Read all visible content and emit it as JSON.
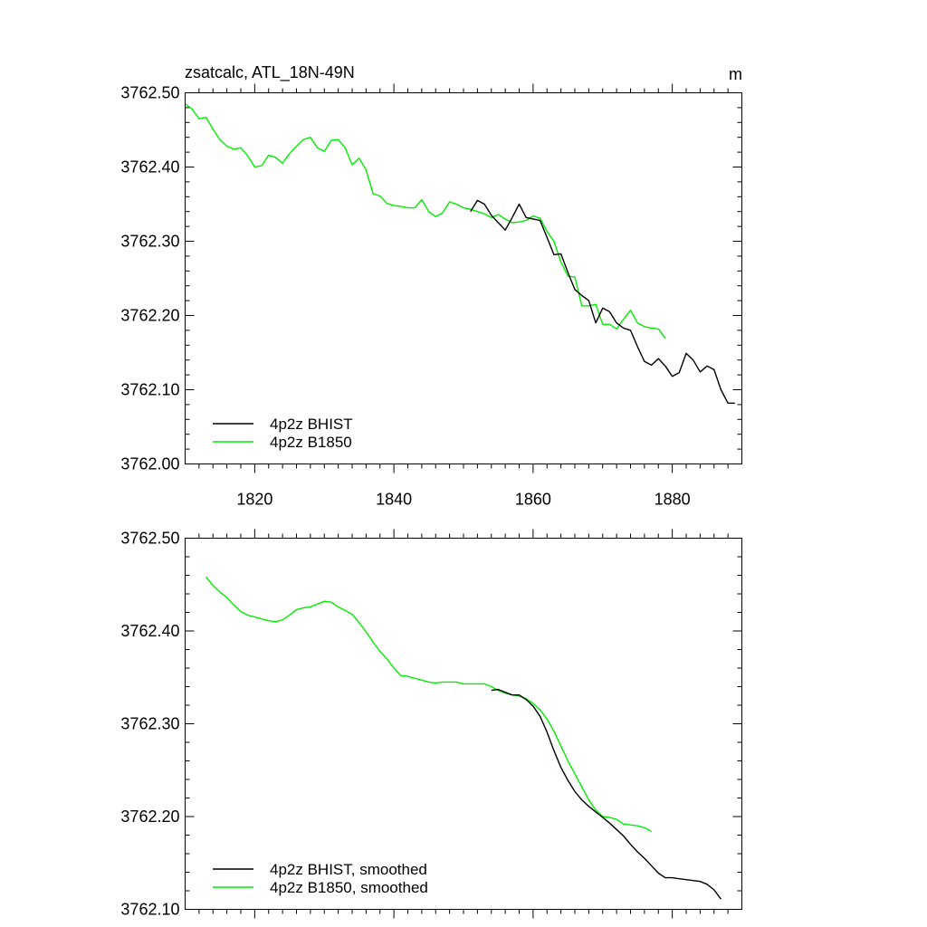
{
  "chart_data": [
    {
      "type": "line",
      "title": "zsatcalc, ATL_18N-49N",
      "units": "m",
      "xlabel": "",
      "ylabel": "",
      "xlim": [
        1810,
        1890
      ],
      "ylim": [
        3762.0,
        3762.5
      ],
      "xticks": [
        1820,
        1840,
        1860,
        1880
      ],
      "xtick_labels": [
        "1820",
        "1840",
        "1860",
        "1880"
      ],
      "yticks": [
        3762.0,
        3762.1,
        3762.2,
        3762.3,
        3762.4,
        3762.5
      ],
      "ytick_labels": [
        "3762.00",
        "3762.10",
        "3762.20",
        "3762.30",
        "3762.40",
        "3762.50"
      ],
      "legend": "bottom-left",
      "series": [
        {
          "name": "4p2z BHIST",
          "color": "#000000",
          "x": [
            1851,
            1852,
            1853,
            1854,
            1855,
            1856,
            1857,
            1858,
            1859,
            1860,
            1861,
            1862,
            1863,
            1864,
            1865,
            1866,
            1867,
            1868,
            1869,
            1870,
            1871,
            1872,
            1873,
            1874,
            1875,
            1876,
            1877,
            1878,
            1879,
            1880,
            1881,
            1882,
            1883,
            1884,
            1885,
            1886,
            1887,
            1888,
            1889
          ],
          "values": [
            3762.34,
            3762.355,
            3762.35,
            3762.335,
            3762.325,
            3762.315,
            3762.332,
            3762.35,
            3762.332,
            3762.33,
            3762.328,
            3762.305,
            3762.282,
            3762.283,
            3762.258,
            3762.235,
            3762.227,
            3762.22,
            3762.19,
            3762.21,
            3762.205,
            3762.19,
            3762.183,
            3762.18,
            3762.158,
            3762.138,
            3762.133,
            3762.142,
            3762.132,
            3762.118,
            3762.123,
            3762.149,
            3762.14,
            3762.124,
            3762.132,
            3762.127,
            3762.1,
            3762.082,
            3762.082
          ]
        },
        {
          "name": "4p2z B1850",
          "color": "#00ee00",
          "x": [
            1810,
            1811,
            1812,
            1813,
            1814,
            1815,
            1816,
            1817,
            1818,
            1819,
            1820,
            1821,
            1822,
            1823,
            1824,
            1825,
            1826,
            1827,
            1828,
            1829,
            1830,
            1831,
            1832,
            1833,
            1834,
            1835,
            1836,
            1837,
            1838,
            1839,
            1840,
            1841,
            1842,
            1843,
            1844,
            1845,
            1846,
            1847,
            1848,
            1849,
            1850,
            1851,
            1852,
            1853,
            1854,
            1855,
            1856,
            1857,
            1858,
            1859,
            1860,
            1861,
            1862,
            1863,
            1864,
            1865,
            1866,
            1867,
            1868,
            1869,
            1870,
            1871,
            1872,
            1873,
            1874,
            1875,
            1876,
            1877,
            1878,
            1879
          ],
          "values": [
            3762.485,
            3762.478,
            3762.465,
            3762.467,
            3762.451,
            3762.437,
            3762.428,
            3762.424,
            3762.426,
            3762.415,
            3762.4,
            3762.402,
            3762.416,
            3762.413,
            3762.405,
            3762.418,
            3762.428,
            3762.437,
            3762.44,
            3762.426,
            3762.421,
            3762.436,
            3762.437,
            3762.426,
            3762.403,
            3762.412,
            3762.396,
            3762.364,
            3762.361,
            3762.351,
            3762.348,
            3762.347,
            3762.345,
            3762.345,
            3762.356,
            3762.34,
            3762.333,
            3762.338,
            3762.353,
            3762.35,
            3762.345,
            3762.343,
            3762.34,
            3762.337,
            3762.332,
            3762.336,
            3762.33,
            3762.325,
            3762.326,
            3762.328,
            3762.334,
            3762.331,
            3762.313,
            3762.3,
            3762.272,
            3762.253,
            3762.252,
            3762.213,
            3762.213,
            3762.215,
            3762.188,
            3762.188,
            3762.182,
            3762.195,
            3762.207,
            3762.19,
            3762.185,
            3762.183,
            3762.182,
            3762.169
          ]
        }
      ]
    },
    {
      "type": "line",
      "title": "",
      "xlabel": "",
      "ylabel": "",
      "xlim": [
        1810,
        1890
      ],
      "ylim": [
        3762.1,
        3762.5
      ],
      "xticks": [
        1820,
        1840,
        1860,
        1880
      ],
      "xtick_labels": [],
      "yticks": [
        3762.1,
        3762.2,
        3762.3,
        3762.4,
        3762.5
      ],
      "ytick_labels": [
        "3762.10",
        "3762.20",
        "3762.30",
        "3762.40",
        "3762.50"
      ],
      "legend": "bottom-left",
      "series": [
        {
          "name": "4p2z BHIST, smoothed",
          "color": "#000000",
          "x": [
            1854,
            1855,
            1856,
            1857,
            1858,
            1859,
            1860,
            1861,
            1862,
            1863,
            1864,
            1865,
            1866,
            1867,
            1868,
            1869,
            1870,
            1871,
            1872,
            1873,
            1874,
            1875,
            1876,
            1877,
            1878,
            1879,
            1880,
            1881,
            1882,
            1883,
            1884,
            1885,
            1886,
            1887
          ],
          "values": [
            3762.336,
            3762.337,
            3762.334,
            3762.331,
            3762.331,
            3762.326,
            3762.319,
            3762.308,
            3762.291,
            3762.271,
            3762.253,
            3762.239,
            3762.227,
            3762.218,
            3762.211,
            3762.205,
            3762.199,
            3762.193,
            3762.186,
            3762.179,
            3762.17,
            3762.162,
            3762.155,
            3762.147,
            3762.139,
            3762.134,
            3762.134,
            3762.133,
            3762.132,
            3762.131,
            3762.13,
            3762.127,
            3762.121,
            3762.111
          ]
        },
        {
          "name": "4p2z B1850, smoothed",
          "color": "#00ee00",
          "x": [
            1813,
            1814,
            1815,
            1816,
            1817,
            1818,
            1819,
            1820,
            1821,
            1822,
            1823,
            1824,
            1825,
            1826,
            1827,
            1828,
            1829,
            1830,
            1831,
            1832,
            1833,
            1834,
            1835,
            1836,
            1837,
            1838,
            1839,
            1840,
            1841,
            1842,
            1843,
            1844,
            1845,
            1846,
            1847,
            1848,
            1849,
            1850,
            1851,
            1852,
            1853,
            1854,
            1855,
            1856,
            1857,
            1858,
            1859,
            1860,
            1861,
            1862,
            1863,
            1864,
            1865,
            1866,
            1867,
            1868,
            1869,
            1870,
            1871,
            1872,
            1873,
            1874,
            1875,
            1876,
            1877
          ],
          "values": [
            3762.458,
            3762.449,
            3762.442,
            3762.436,
            3762.428,
            3762.421,
            3762.417,
            3762.415,
            3762.413,
            3762.411,
            3762.41,
            3762.412,
            3762.417,
            3762.423,
            3762.425,
            3762.426,
            3762.429,
            3762.432,
            3762.431,
            3762.426,
            3762.422,
            3762.418,
            3762.409,
            3762.399,
            3762.388,
            3762.378,
            3762.37,
            3762.36,
            3762.352,
            3762.351,
            3762.349,
            3762.347,
            3762.345,
            3762.344,
            3762.345,
            3762.345,
            3762.345,
            3762.343,
            3762.343,
            3762.343,
            3762.343,
            3762.34,
            3762.336,
            3762.333,
            3762.331,
            3762.33,
            3762.327,
            3762.322,
            3762.315,
            3762.305,
            3762.292,
            3762.276,
            3762.26,
            3762.246,
            3762.232,
            3762.218,
            3762.207,
            3762.2,
            3762.199,
            3762.197,
            3762.192,
            3762.191,
            3762.19,
            3762.188,
            3762.184
          ]
        }
      ]
    }
  ]
}
